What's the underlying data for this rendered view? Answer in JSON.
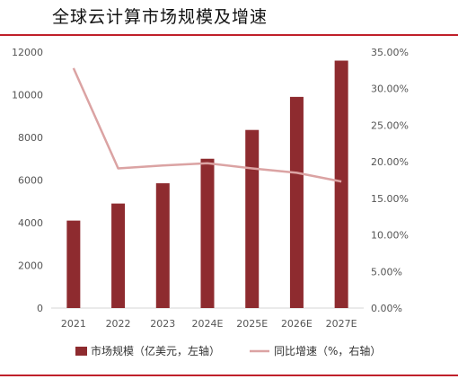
{
  "title": "全球云计算市场规模及增速",
  "chart_data": {
    "type": "bar",
    "categories": [
      "2021",
      "2022",
      "2023",
      "2024E",
      "2025E",
      "2026E",
      "2027E"
    ],
    "series": [
      {
        "name": "市场规模（亿美元，左轴）",
        "type": "bar",
        "axis": "left",
        "values": [
          4100,
          4900,
          5850,
          7000,
          8350,
          9900,
          11600
        ]
      },
      {
        "name": "同比增速（%，右轴）",
        "type": "line",
        "axis": "right",
        "values": [
          32.8,
          19.1,
          19.5,
          19.8,
          19.1,
          18.5,
          17.3
        ]
      }
    ],
    "left_axis": {
      "ylim": [
        0,
        12000
      ],
      "ticks": [
        "0",
        "2000",
        "4000",
        "6000",
        "8000",
        "10000",
        "12000"
      ]
    },
    "right_axis": {
      "ylim": [
        0,
        35
      ],
      "ticks": [
        "0.00%",
        "5.00%",
        "10.00%",
        "15.00%",
        "20.00%",
        "25.00%",
        "30.00%",
        "35.00%"
      ]
    },
    "colors": {
      "bar": "#8e2b2f",
      "line": "#dba3a3"
    },
    "legend": "bottom",
    "grid": false
  }
}
